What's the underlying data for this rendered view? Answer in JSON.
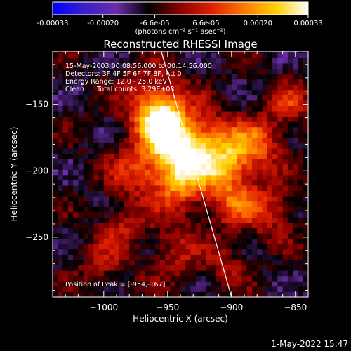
{
  "colorbar": {
    "tick_labels": [
      "-0.00033",
      "-0.00020",
      "-6.6e-05",
      "6.6e-05",
      "0.00020",
      "0.00033"
    ],
    "tick_values": [
      -0.00033,
      -0.0002,
      -6.6e-05,
      6.6e-05,
      0.0002,
      0.00033
    ],
    "range": [
      -0.00033,
      0.00033
    ],
    "units_text": "(photons cm⁻² s⁻¹ asec⁻²)"
  },
  "chart_data": {
    "type": "heatmap",
    "title": "Reconstructed RHESSI Image",
    "xlabel": "Heliocentric X (arcsec)",
    "ylabel": "Heliocentric Y (arcsec)",
    "xlim": [
      -1040,
      -840
    ],
    "ylim": [
      -295,
      -110
    ],
    "xticks": [
      -1000,
      -950,
      -900,
      -850
    ],
    "yticks": [
      -150,
      -200,
      -250
    ],
    "info_lines": [
      "15-May-2003 00:08:56.000 to 00:14:56.000",
      "Detectors: 3F 4F 5F 6F 7F 8F, Att 0",
      "Energy Range: 12.0 - 25.0 keV",
      "Clean      Total counts: 3.29E+03"
    ],
    "peak_text": "Position of Peak = [-954,-167]",
    "peak": [
      -954,
      -167
    ],
    "limb_line": [
      [
        -955,
        -110
      ],
      [
        -900,
        -295
      ]
    ],
    "colormap": [
      "#0000ff",
      "#3b20c8",
      "#6a2ea8",
      "#000000",
      "#8b0000",
      "#e02000",
      "#ff7a00",
      "#ffd000",
      "#ffffff"
    ],
    "sources": [
      {
        "x": -954,
        "y": -167,
        "r": 12,
        "amp": 1.0
      },
      {
        "x": -960,
        "y": -150,
        "r": 16,
        "amp": 0.7
      },
      {
        "x": -944,
        "y": -190,
        "r": 15,
        "amp": 0.75
      },
      {
        "x": -925,
        "y": -180,
        "r": 18,
        "amp": 0.65
      },
      {
        "x": -905,
        "y": -195,
        "r": 16,
        "amp": 0.7
      },
      {
        "x": -880,
        "y": -180,
        "r": 14,
        "amp": 0.55
      },
      {
        "x": -975,
        "y": -200,
        "r": 14,
        "amp": 0.5
      },
      {
        "x": -940,
        "y": -215,
        "r": 14,
        "amp": 0.5
      },
      {
        "x": -900,
        "y": -225,
        "r": 12,
        "amp": 0.45
      },
      {
        "x": -870,
        "y": -230,
        "r": 14,
        "amp": 0.45
      },
      {
        "x": -855,
        "y": -150,
        "r": 12,
        "amp": 0.4
      },
      {
        "x": -985,
        "y": -240,
        "r": 12,
        "amp": 0.35
      },
      {
        "x": -945,
        "y": -260,
        "r": 14,
        "amp": 0.35
      },
      {
        "x": -1000,
        "y": -270,
        "r": 13,
        "amp": 0.3
      },
      {
        "x": -905,
        "y": -270,
        "r": 12,
        "amp": 0.3
      }
    ]
  },
  "timestamp": "1-May-2022 15:47"
}
